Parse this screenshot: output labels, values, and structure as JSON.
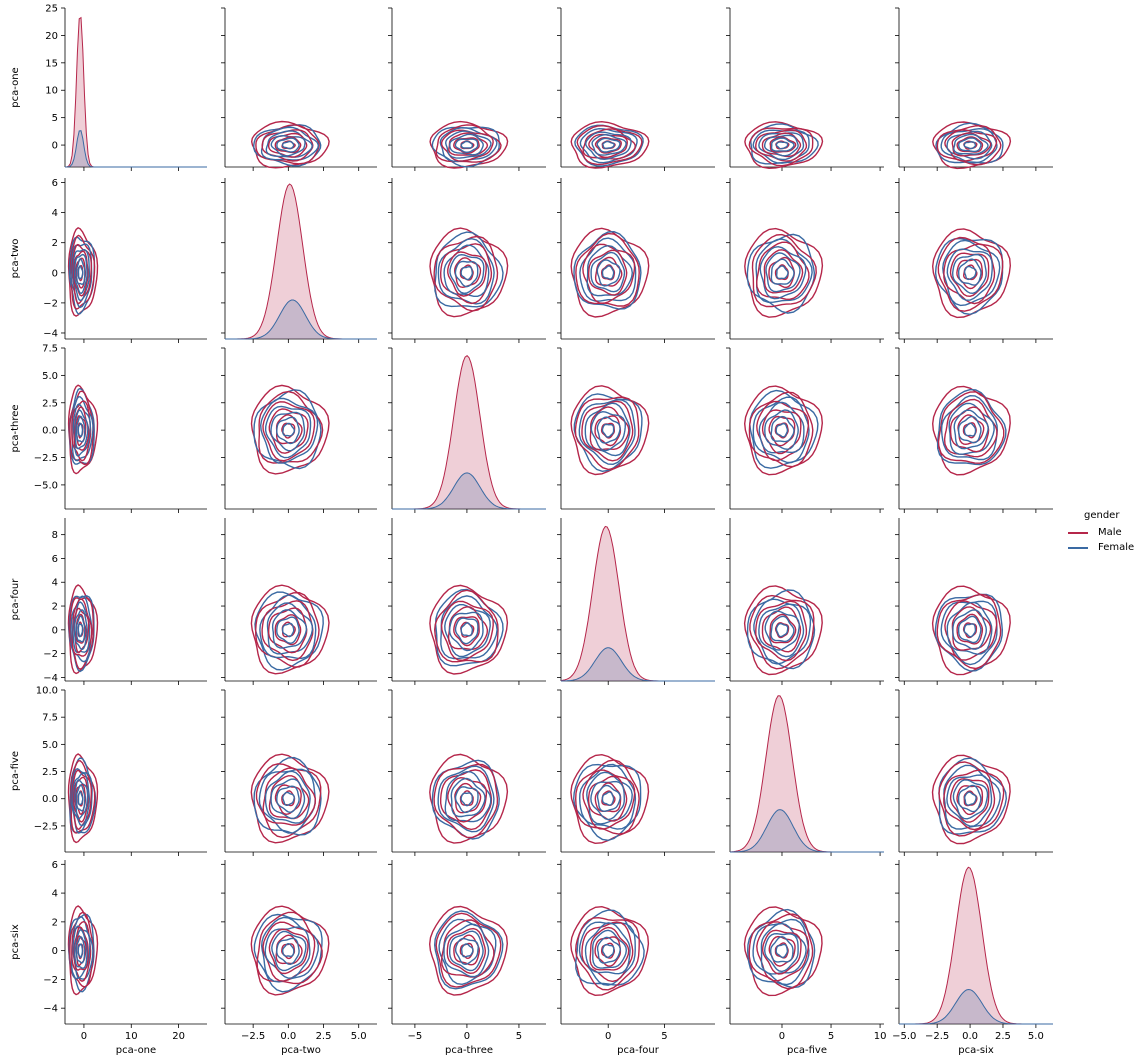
{
  "chart_data": {
    "type": "pairplot",
    "variables": [
      "pca-one",
      "pca-two",
      "pca-three",
      "pca-four",
      "pca-five",
      "pca-six"
    ],
    "diag_kind": "kde (filled)",
    "offdiag_kind": "kde contours",
    "hue": "gender",
    "legend": {
      "title": "gender",
      "placement": "right",
      "entries": [
        {
          "name": "Male",
          "color": "#b5264a"
        },
        {
          "name": "Female",
          "color": "#3a6aa3"
        }
      ]
    },
    "axes": {
      "pca-one": {
        "lim": [
          -4,
          26
        ],
        "ticks": [
          0,
          10,
          20
        ],
        "tick_labels": [
          "0",
          "10",
          "20"
        ],
        "ylim": [
          -4,
          25
        ],
        "yticks": [
          0,
          5,
          10,
          15,
          20,
          25
        ],
        "ytick_labels": [
          "0",
          "5",
          "10",
          "15",
          "20",
          "25"
        ]
      },
      "pca-two": {
        "lim": [
          -4.5,
          6.3
        ],
        "ticks": [
          -2.5,
          0.0,
          2.5,
          5.0
        ],
        "tick_labels": [
          "−2.5",
          "0.0",
          "2.5",
          "5.0"
        ],
        "ylim": [
          -4.4,
          6.3
        ],
        "yticks": [
          -4,
          -2,
          0,
          2,
          4,
          6
        ],
        "ytick_labels": [
          "−4",
          "−2",
          "0",
          "2",
          "4",
          "6"
        ]
      },
      "pca-three": {
        "lim": [
          -7.2,
          7.6
        ],
        "ticks": [
          -5,
          0,
          5
        ],
        "tick_labels": [
          "−5",
          "0",
          "5"
        ],
        "ylim": [
          -7.2,
          7.5
        ],
        "yticks": [
          -5.0,
          -2.5,
          0.0,
          2.5,
          5.0,
          7.5
        ],
        "ytick_labels": [
          "−5.0",
          "−2.5",
          "0.0",
          "2.5",
          "5.0",
          "7.5"
        ]
      },
      "pca-four": {
        "lim": [
          -4.2,
          9.5
        ],
        "ticks": [
          0,
          5
        ],
        "tick_labels": [
          "0",
          "5"
        ],
        "ylim": [
          -4.3,
          9.4
        ],
        "yticks": [
          -4,
          -2,
          0,
          2,
          4,
          6,
          8
        ],
        "ytick_labels": [
          "−4",
          "−2",
          "0",
          "2",
          "4",
          "6",
          "8"
        ]
      },
      "pca-five": {
        "lim": [
          -5.3,
          10.4
        ],
        "ticks": [
          0,
          5,
          10
        ],
        "tick_labels": [
          "0",
          "5",
          "10"
        ],
        "ylim": [
          -4.9,
          10.0
        ],
        "yticks": [
          -2.5,
          0.0,
          2.5,
          5.0,
          7.5,
          10.0
        ],
        "ytick_labels": [
          "−2.5",
          "0.0",
          "2.5",
          "5.0",
          "7.5",
          "10.0"
        ]
      },
      "pca-six": {
        "lim": [
          -5.4,
          6.3
        ],
        "ticks": [
          -5.0,
          -2.5,
          0.0,
          2.5,
          5.0
        ],
        "tick_labels": [
          "−5.0",
          "−2.5",
          "0.0",
          "2.5",
          "5.0"
        ],
        "ylim": [
          -5.1,
          6.3
        ],
        "yticks": [
          -4,
          -2,
          0,
          2,
          4,
          6
        ],
        "ytick_labels": [
          "−4",
          "−2",
          "0",
          "2",
          "4",
          "6"
        ]
      }
    },
    "diagonal_kde": {
      "pca-one": {
        "Male": {
          "peak_x": -0.8,
          "peak_y": 24.0
        },
        "Female": {
          "peak_x": -0.8,
          "peak_y": 2.8
        }
      },
      "pca-two": {
        "Male": {
          "peak_x": 0.1,
          "peak_y": 5.9
        },
        "Female": {
          "peak_x": 0.3,
          "peak_y": -1.8
        }
      },
      "pca-three": {
        "Male": {
          "peak_x": 0.0,
          "peak_y": 6.8
        },
        "Female": {
          "peak_x": 0.0,
          "peak_y": -3.9
        }
      },
      "pca-four": {
        "Male": {
          "peak_x": -0.2,
          "peak_y": 8.7
        },
        "Female": {
          "peak_x": 0.0,
          "peak_y": -1.5
        }
      },
      "pca-five": {
        "Male": {
          "peak_x": -0.3,
          "peak_y": 9.5
        },
        "Female": {
          "peak_x": -0.2,
          "peak_y": -1.0
        }
      },
      "pca-six": {
        "Male": {
          "peak_x": -0.1,
          "peak_y": 5.8
        },
        "Female": {
          "peak_x": -0.1,
          "peak_y": -2.7
        }
      }
    }
  }
}
